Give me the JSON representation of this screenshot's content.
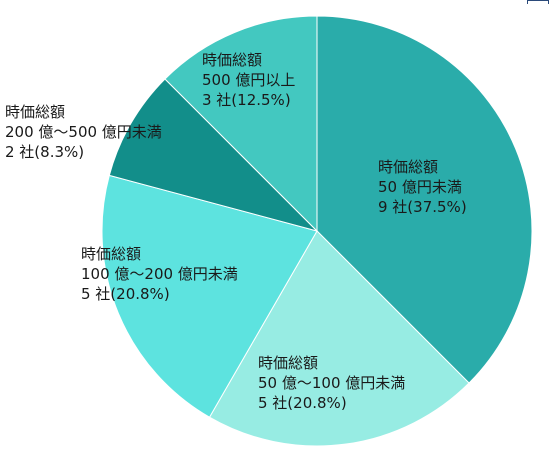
{
  "chart_data": {
    "type": "pie",
    "title": "",
    "start_angle_deg": 0,
    "direction": "clockwise",
    "slices": [
      {
        "lines": [
          "時価総額",
          "50 億円未満",
          "9 社(37.5%)"
        ],
        "count": 9,
        "percent": 37.5,
        "color": "#2aacaa"
      },
      {
        "lines": [
          "時価総額",
          "50 億〜100 億円未満",
          "5 社(20.8%)"
        ],
        "count": 5,
        "percent": 20.8,
        "color": "#97ece3"
      },
      {
        "lines": [
          "時価総額",
          "100 億〜200 億円未満",
          "5 社(20.8%)"
        ],
        "count": 5,
        "percent": 20.8,
        "color": "#5de3df"
      },
      {
        "lines": [
          "時価総額",
          "200 億〜500 億円未満",
          "2 社(8.3%)"
        ],
        "count": 2,
        "percent": 8.3,
        "color": "#128e8a"
      },
      {
        "lines": [
          "時価総額",
          "500 億円以上",
          "3 社(12.5%)"
        ],
        "count": 3,
        "percent": 12.5,
        "color": "#43c8c0"
      }
    ]
  }
}
